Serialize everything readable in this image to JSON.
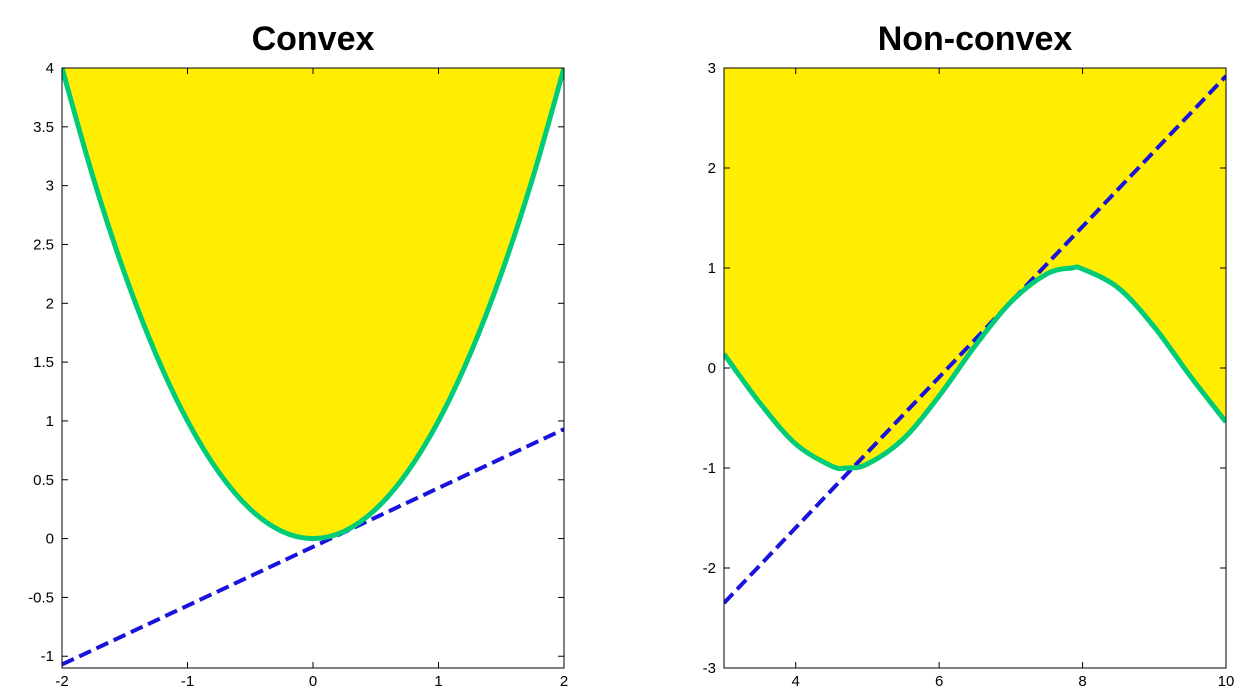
{
  "colors": {
    "fill": "#ffee00",
    "curve": "#00cc77",
    "tangent": "#1a12dd",
    "axis": "#000000"
  },
  "chart_data": [
    {
      "type": "line",
      "title": "Convex",
      "xlabel": "",
      "ylabel": "",
      "xlim": [
        -2,
        2
      ],
      "ylim": [
        -1.1,
        4
      ],
      "xticks": [
        -2,
        -1,
        0,
        1,
        2
      ],
      "xtick_labels": [
        "-2",
        "-1",
        "0",
        "1",
        "2"
      ],
      "yticks": [
        -1,
        -0.5,
        0,
        0.5,
        1,
        1.5,
        2,
        2.5,
        3,
        3.5,
        4
      ],
      "ytick_labels": [
        "-1",
        "-0.5",
        "0",
        "0.5",
        "1",
        "1.5",
        "2",
        "2.5",
        "3",
        "3.5",
        "4"
      ],
      "grid": false,
      "series": [
        {
          "style": "solid",
          "color": "#00cc77",
          "x": [
            -2,
            -1.75,
            -1.5,
            -1.25,
            -1,
            -0.75,
            -0.5,
            -0.25,
            0,
            0.25,
            0.5,
            0.75,
            1,
            1.25,
            1.5,
            1.75,
            2
          ],
          "y": [
            4,
            3.0625,
            2.25,
            1.5625,
            1,
            0.5625,
            0.25,
            0.0625,
            0,
            0.0625,
            0.25,
            0.5625,
            1,
            1.5625,
            2.25,
            3.0625,
            4
          ]
        },
        {
          "style": "dashed",
          "color": "#1a12dd",
          "x": [
            -2,
            2
          ],
          "y": [
            -1.07,
            0.93
          ]
        }
      ],
      "filled_region": {
        "bounded_by": "curve",
        "to": "top",
        "color": "#ffee00"
      }
    },
    {
      "type": "line",
      "title": "Non-convex",
      "xlabel": "",
      "ylabel": "",
      "xlim": [
        3,
        10
      ],
      "ylim": [
        -3,
        3
      ],
      "xticks": [
        4,
        6,
        8,
        10
      ],
      "xtick_labels": [
        "4",
        "6",
        "8",
        "10"
      ],
      "yticks": [
        -3,
        -2,
        -1,
        0,
        1,
        2,
        3
      ],
      "ytick_labels": [
        "-3",
        "-2",
        "-1",
        "0",
        "1",
        "2",
        "3"
      ],
      "grid": false,
      "series": [
        {
          "style": "solid",
          "color": "#00cc77",
          "x": [
            3,
            3.5,
            4,
            4.5,
            4.71,
            5,
            5.5,
            6,
            6.5,
            7,
            7.5,
            7.85,
            8,
            8.5,
            9,
            9.5,
            10
          ],
          "y": [
            0.14,
            -0.35,
            -0.76,
            -0.98,
            -1,
            -0.96,
            -0.71,
            -0.28,
            0.22,
            0.66,
            0.94,
            1,
            0.99,
            0.8,
            0.41,
            -0.08,
            -0.54
          ]
        },
        {
          "style": "dashed",
          "color": "#1a12dd",
          "x": [
            3,
            10
          ],
          "y": [
            -2.35,
            2.92
          ]
        }
      ],
      "filled_region": {
        "bounded_by": "curve",
        "to": "top",
        "color": "#ffee00"
      }
    }
  ]
}
